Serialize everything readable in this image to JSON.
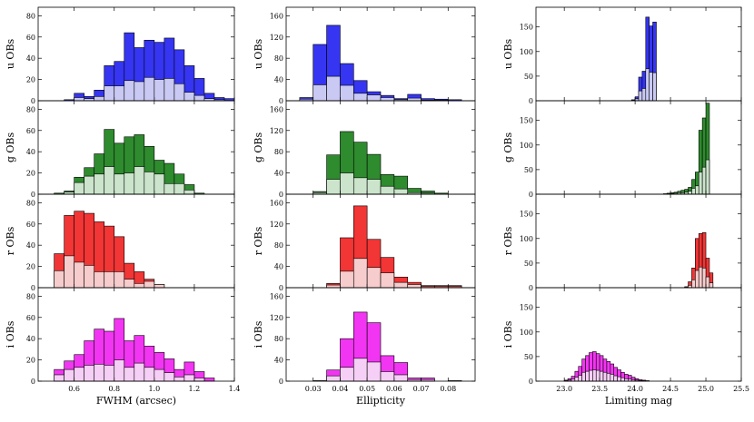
{
  "chart_data": {
    "type": "bar",
    "layout": "4 rows (bands) x 3 columns (quantities), shared x-axis per column",
    "rows": [
      {
        "band": "u",
        "ylabel": "u OBs",
        "color": "#3535f2",
        "light_color": "#c9c9f4"
      },
      {
        "band": "g",
        "ylabel": "g OBs",
        "color": "#2e8b2e",
        "light_color": "#cbe4cb"
      },
      {
        "band": "r",
        "ylabel": "r OBs",
        "color": "#f23535",
        "light_color": "#f7cccc"
      },
      {
        "band": "i",
        "ylabel": "i OBs",
        "color": "#f235f2",
        "light_color": "#f5cff5"
      }
    ],
    "columns": [
      {
        "xlabel": "FWHM (arcsec)",
        "xlim": [
          0.42,
          1.4
        ],
        "xticks": [
          0.6,
          0.8,
          1.0,
          1.2,
          1.4
        ],
        "xtick_labels": [
          "0.6",
          "0.8",
          "1.0",
          "1.2",
          "1.4"
        ],
        "ylim": [
          0,
          88
        ],
        "yticks": [
          0,
          20,
          40,
          60,
          80
        ],
        "ytick_labels": [
          "0",
          "20",
          "40",
          "60",
          "80"
        ],
        "bin_width": 0.05,
        "series": [
          {
            "band": "u",
            "bins": [
              0.5,
              0.55,
              0.6,
              0.65,
              0.7,
              0.75,
              0.8,
              0.85,
              0.9,
              0.95,
              1.0,
              1.05,
              1.1,
              1.15,
              1.2,
              1.25,
              1.3,
              1.35
            ],
            "total": [
              0,
              1,
              7,
              4,
              10,
              33,
              37,
              64,
              50,
              57,
              55,
              59,
              48,
              33,
              21,
              7,
              3,
              2
            ],
            "subset": [
              0,
              0,
              3,
              2,
              4,
              14,
              14,
              19,
              18,
              22,
              20,
              21,
              16,
              8,
              5,
              2,
              1,
              0
            ]
          },
          {
            "band": "g",
            "bins": [
              0.5,
              0.55,
              0.6,
              0.65,
              0.7,
              0.75,
              0.8,
              0.85,
              0.9,
              0.95,
              1.0,
              1.05,
              1.1,
              1.15,
              1.2,
              1.25
            ],
            "total": [
              1,
              3,
              16,
              25,
              38,
              61,
              48,
              54,
              56,
              45,
              32,
              29,
              19,
              9,
              1,
              0
            ],
            "subset": [
              0,
              2,
              11,
              17,
              19,
              26,
              19,
              20,
              26,
              21,
              19,
              10,
              10,
              4,
              0,
              0
            ]
          },
          {
            "band": "r",
            "bins": [
              0.5,
              0.55,
              0.6,
              0.65,
              0.7,
              0.75,
              0.8,
              0.85,
              0.9,
              0.95,
              1.0,
              1.05,
              1.1
            ],
            "total": [
              32,
              68,
              72,
              70,
              62,
              58,
              48,
              23,
              15,
              8,
              3,
              0,
              0
            ],
            "subset": [
              16,
              30,
              24,
              21,
              15,
              15,
              15,
              8,
              4,
              6,
              3,
              0,
              0
            ]
          },
          {
            "band": "i",
            "bins": [
              0.5,
              0.55,
              0.6,
              0.65,
              0.7,
              0.75,
              0.8,
              0.85,
              0.9,
              0.95,
              1.0,
              1.05,
              1.1,
              1.15,
              1.2,
              1.25
            ],
            "total": [
              11,
              19,
              25,
              38,
              49,
              47,
              59,
              38,
              43,
              33,
              27,
              21,
              11,
              18,
              9,
              3
            ],
            "subset": [
              6,
              11,
              13,
              15,
              16,
              15,
              20,
              13,
              17,
              13,
              11,
              8,
              4,
              6,
              3,
              0
            ]
          }
        ]
      },
      {
        "xlabel": "Ellipticity",
        "xlim": [
          0.02,
          0.09
        ],
        "xticks": [
          0.03,
          0.04,
          0.05,
          0.06,
          0.07,
          0.08
        ],
        "xtick_labels": [
          "0.03",
          "0.04",
          "0.05",
          "0.06",
          "0.07",
          "0.08"
        ],
        "ylim": [
          0,
          176
        ],
        "yticks": [
          0,
          40,
          80,
          120,
          160
        ],
        "ytick_labels": [
          "0",
          "40",
          "80",
          "120",
          "160"
        ],
        "bin_width": 0.005,
        "series": [
          {
            "band": "u",
            "bins": [
              0.025,
              0.03,
              0.035,
              0.04,
              0.045,
              0.05,
              0.055,
              0.06,
              0.065,
              0.07,
              0.075,
              0.08
            ],
            "total": [
              6,
              106,
              142,
              70,
              38,
              17,
              10,
              4,
              12,
              4,
              3,
              2
            ],
            "subset": [
              3,
              30,
              46,
              29,
              14,
              11,
              6,
              2,
              5,
              1,
              1,
              0
            ]
          },
          {
            "band": "g",
            "bins": [
              0.03,
              0.035,
              0.04,
              0.045,
              0.05,
              0.055,
              0.06,
              0.065,
              0.07,
              0.075,
              0.08
            ],
            "total": [
              5,
              74,
              118,
              98,
              75,
              37,
              34,
              11,
              6,
              2,
              0
            ],
            "subset": [
              3,
              28,
              40,
              31,
              28,
              15,
              10,
              3,
              2,
              0,
              0
            ]
          },
          {
            "band": "r",
            "bins": [
              0.035,
              0.04,
              0.045,
              0.05,
              0.055,
              0.06,
              0.065,
              0.07,
              0.075,
              0.08
            ],
            "total": [
              8,
              94,
              154,
              91,
              57,
              20,
              10,
              4,
              4,
              4
            ],
            "subset": [
              5,
              31,
              55,
              38,
              28,
              10,
              6,
              2,
              2,
              2
            ]
          },
          {
            "band": "i",
            "bins": [
              0.03,
              0.035,
              0.04,
              0.045,
              0.05,
              0.055,
              0.06,
              0.065,
              0.07,
              0.075,
              0.08
            ],
            "total": [
              1,
              21,
              80,
              130,
              110,
              48,
              35,
              6,
              6,
              0,
              1
            ],
            "subset": [
              0,
              10,
              26,
              43,
              36,
              18,
              12,
              3,
              3,
              0,
              0
            ]
          }
        ]
      },
      {
        "xlabel": "Limiting mag",
        "xlim": [
          22.6,
          25.5
        ],
        "xticks": [
          23.0,
          23.5,
          24.0,
          24.5,
          25.0,
          25.5
        ],
        "xtick_labels": [
          "23.0",
          "23.5",
          "24.0",
          "24.5",
          "25.0",
          "25.5"
        ],
        "ylim": [
          0,
          190
        ],
        "yticks": [
          0,
          50,
          100,
          150
        ],
        "ytick_labels": [
          "0",
          "50",
          "100",
          "150"
        ],
        "bin_width": 0.05,
        "series": [
          {
            "band": "u",
            "bins": [
              23.95,
              24.0,
              24.05,
              24.1,
              24.15,
              24.2,
              24.25,
              24.3
            ],
            "total": [
              2,
              8,
              48,
              60,
              170,
              152,
              160,
              0
            ],
            "subset": [
              1,
              4,
              20,
              25,
              65,
              58,
              57,
              0
            ]
          },
          {
            "band": "g",
            "bins": [
              24.4,
              24.45,
              24.5,
              24.55,
              24.6,
              24.65,
              24.7,
              24.75,
              24.8,
              24.85,
              24.9,
              24.95,
              25.0,
              25.05,
              25.1,
              25.15,
              25.2
            ],
            "total": [
              1,
              2,
              3,
              4,
              6,
              8,
              10,
              14,
              30,
              45,
              130,
              155,
              185,
              0,
              0,
              0,
              0
            ],
            "subset": [
              0,
              1,
              1,
              2,
              3,
              3,
              4,
              6,
              12,
              17,
              45,
              55,
              70,
              0,
              0,
              0,
              0
            ]
          },
          {
            "band": "r",
            "bins": [
              24.7,
              24.75,
              24.8,
              24.85,
              24.9,
              24.95,
              25.0,
              25.05,
              25.1,
              25.15
            ],
            "total": [
              2,
              12,
              40,
              100,
              110,
              112,
              60,
              30,
              0,
              0
            ],
            "subset": [
              1,
              5,
              16,
              35,
              42,
              40,
              22,
              10,
              0,
              0
            ]
          },
          {
            "band": "i",
            "bins": [
              23.0,
              23.05,
              23.1,
              23.15,
              23.2,
              23.25,
              23.3,
              23.35,
              23.4,
              23.45,
              23.5,
              23.55,
              23.6,
              23.65,
              23.7,
              23.75,
              23.8,
              23.85,
              23.9,
              23.95,
              24.0,
              24.05,
              24.1,
              24.15
            ],
            "total": [
              2,
              5,
              10,
              20,
              30,
              45,
              52,
              58,
              60,
              56,
              52,
              45,
              40,
              35,
              28,
              23,
              18,
              14,
              12,
              8,
              5,
              3,
              2,
              1
            ],
            "subset": [
              1,
              2,
              4,
              8,
              12,
              18,
              20,
              22,
              23,
              22,
              20,
              18,
              16,
              14,
              11,
              9,
              7,
              5,
              4,
              3,
              2,
              1,
              1,
              0
            ]
          }
        ]
      }
    ]
  }
}
